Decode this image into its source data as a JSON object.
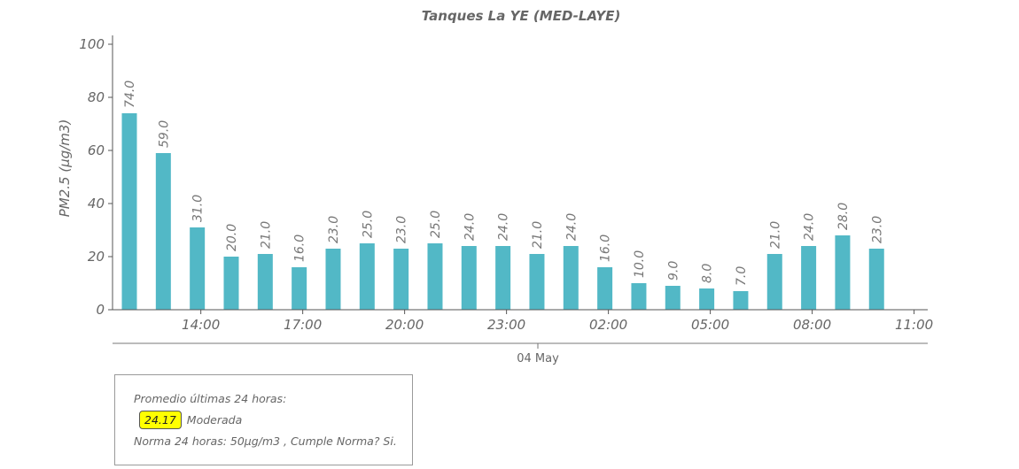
{
  "chart_data": {
    "type": "bar",
    "title": "Tanques La YE (MED-LAYE)",
    "ylabel": "PM2.5 (μg/m3)",
    "xlabel": "04 May",
    "ylim": [
      0,
      100
    ],
    "yticks": [
      "0",
      "20",
      "40",
      "60",
      "80",
      "100"
    ],
    "xticks": [
      "14:00",
      "17:00",
      "20:00",
      "23:00",
      "02:00",
      "05:00",
      "08:00",
      "11:00"
    ],
    "series": [
      {
        "values": [
          74,
          59,
          31,
          20,
          21,
          16,
          23,
          25,
          23,
          25,
          24,
          24,
          21,
          24,
          16,
          10,
          9,
          8,
          7,
          21,
          24,
          28,
          23
        ],
        "labels": [
          "74.0",
          "59.0",
          "31.0",
          "20.0",
          "21.0",
          "16.0",
          "23.0",
          "25.0",
          "23.0",
          "25.0",
          "24.0",
          "24.0",
          "21.0",
          "24.0",
          "16.0",
          "10.0",
          "9.0",
          "8.0",
          "7.0",
          "21.0",
          "24.0",
          "28.0",
          "23.0"
        ]
      }
    ],
    "bar_color": "#52b8c6",
    "grid": false,
    "legend": "none"
  },
  "summary": {
    "heading": "Promedio últimas 24 horas:",
    "value": "24.17",
    "value_color": "#ffff00",
    "category": "Moderada",
    "norma": "Norma 24 horas: 50μg/m3 , Cumple Norma? Si."
  }
}
